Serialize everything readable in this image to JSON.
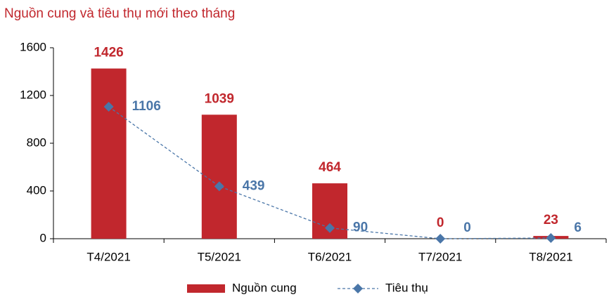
{
  "chart_data": {
    "type": "bar",
    "title": "Nguồn cung và tiêu thụ mới theo tháng",
    "categories": [
      "T4/2021",
      "T5/2021",
      "T6/2021",
      "T7/2021",
      "T8/2021"
    ],
    "series": [
      {
        "name": "Nguồn cung",
        "type": "bar",
        "color": "#c1272d",
        "values": [
          1426,
          1039,
          464,
          0,
          23
        ]
      },
      {
        "name": "Tiêu thụ",
        "type": "line",
        "color": "#4a76a8",
        "values": [
          1106,
          439,
          90,
          0,
          6
        ]
      }
    ],
    "ylim": [
      0,
      1600
    ],
    "yticks": [
      0,
      400,
      800,
      1200,
      1600
    ],
    "grid": false,
    "legend": "bottom"
  }
}
